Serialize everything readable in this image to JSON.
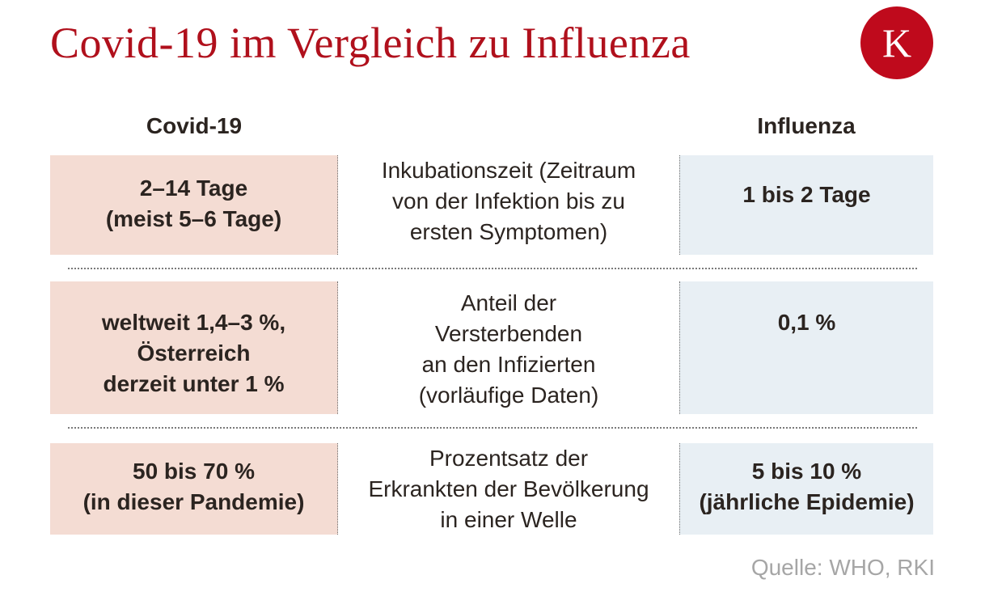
{
  "title": "Covid-19 im Vergleich zu Influenza",
  "logo": {
    "letter": "K",
    "color": "#bf0a1c"
  },
  "headers": {
    "left": "Covid-19",
    "right": "Influenza"
  },
  "rows": [
    {
      "covid": "2–14 Tage\n(meist 5–6 Tage)",
      "label": "Inkubationszeit (Zeitraum\nvon der Infektion bis zu\nersten Symptomen)",
      "influenza": "1 bis 2 Tage"
    },
    {
      "covid": "weltweit 1,4–3 %,\nÖsterreich\nderzeit unter 1 %",
      "label": "Anteil der\nVersterbenden\nan den Infizierten\n(vorläufige Daten)",
      "influenza": "0,1 %"
    },
    {
      "covid": "50 bis 70 %\n(in dieser Pandemie)",
      "label": "Prozentsatz der\nErkrankten der Bevölkerung\nin einer Welle",
      "influenza": "5 bis 10 %\n(jährliche Epidemie)"
    }
  ],
  "source": "Quelle: WHO, RKI",
  "colors": {
    "covid_bg": "#f4dcd3",
    "influenza_bg": "#e8eff4",
    "title": "#b0101c"
  }
}
